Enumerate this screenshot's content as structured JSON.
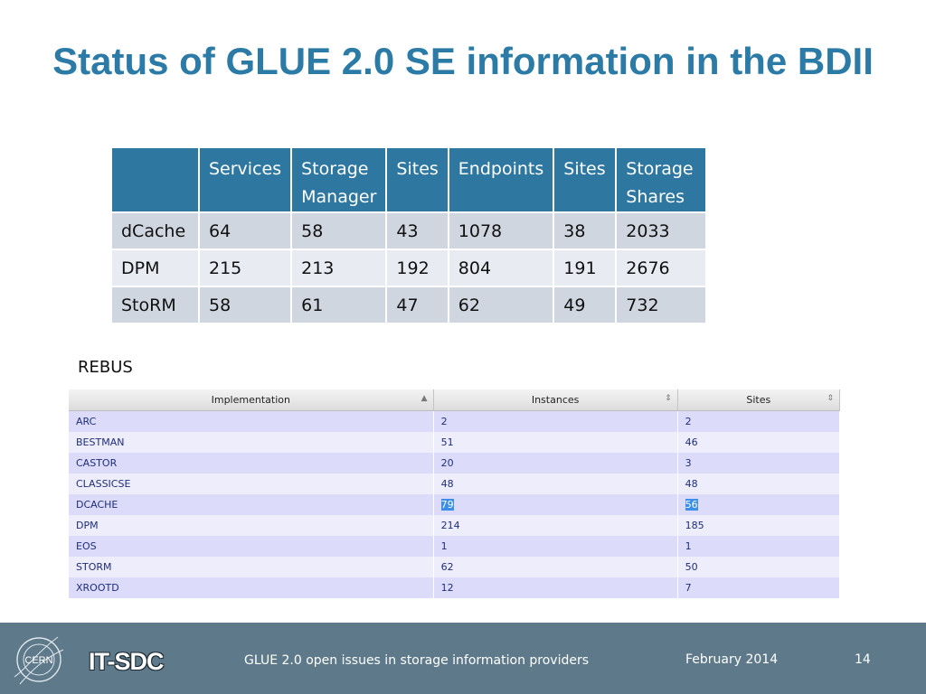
{
  "slide": {
    "title": "Status of GLUE 2.0 SE information in the BDII"
  },
  "glue_table": {
    "columns": [
      "",
      "Services",
      "Storage Manager",
      "Sites",
      "Endpoints",
      "Sites",
      "Storage Shares"
    ],
    "rows": [
      [
        "dCache",
        "64",
        "58",
        "43",
        "1078",
        "38",
        "2033"
      ],
      [
        "DPM",
        "215",
        "213",
        "192",
        "804",
        "191",
        "2676"
      ],
      [
        "StoRM",
        "58",
        "61",
        "47",
        "62",
        "49",
        "732"
      ]
    ]
  },
  "rebus": {
    "label": "REBUS",
    "columns": [
      "Implementation",
      "Instances",
      "Sites"
    ],
    "sort_icons": [
      "sort-ascending-icon",
      "sort-both-icon",
      "sort-both-icon"
    ],
    "rows": [
      [
        "ARC",
        "2",
        "2"
      ],
      [
        "BESTMAN",
        "51",
        "46"
      ],
      [
        "CASTOR",
        "20",
        "3"
      ],
      [
        "CLASSICSE",
        "48",
        "48"
      ],
      [
        "DCACHE",
        "79",
        "56"
      ],
      [
        "DPM",
        "214",
        "185"
      ],
      [
        "EOS",
        "1",
        "1"
      ],
      [
        "STORM",
        "62",
        "50"
      ],
      [
        "XROOTD",
        "12",
        "7"
      ]
    ],
    "selected_row": 4
  },
  "footer": {
    "logo_text": "CERN",
    "department": "IT-SDC",
    "subject": "GLUE 2.0 open issues in storage information providers",
    "date": "February 2014",
    "page": "14"
  },
  "colors": {
    "title": "#2c7ba7",
    "header": "#2e77a0",
    "footer": "#5e7a8a"
  }
}
